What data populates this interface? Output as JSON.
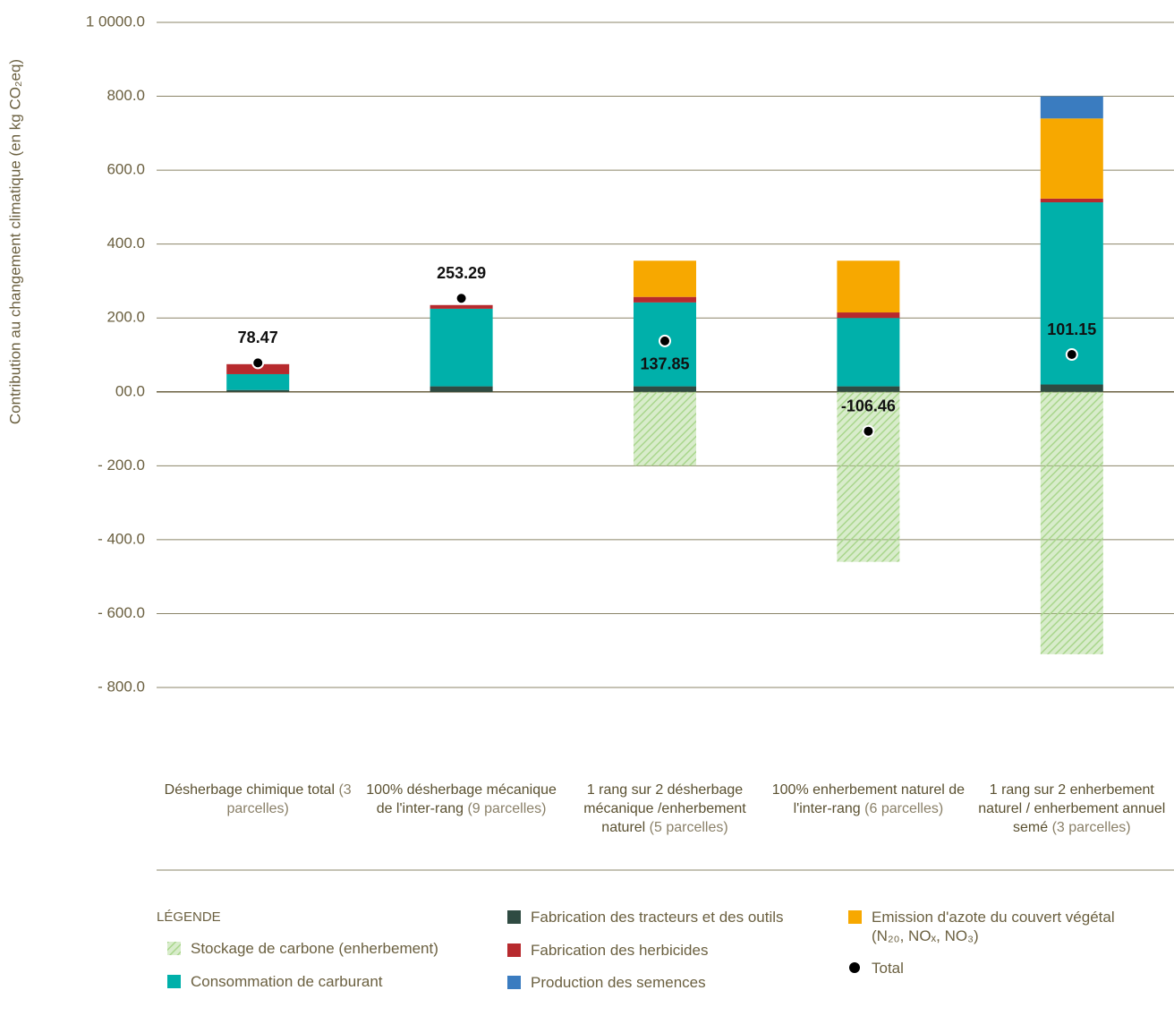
{
  "chart_data": {
    "type": "stacked_bar",
    "y_label": "Contribution au changement climatique (en kg CO₂eq)",
    "categories": [
      "Désherbage chimique total",
      "100% désherbage mécanique de l'inter-rang",
      "1 rang sur 2 désherbage mécanique /enherbement naturel",
      "100% enherbement naturel de l'inter-rang",
      "1 rang sur 2 enherbement naturel / enherbement annuel semé"
    ],
    "category_notes": [
      "(3 parcelles)",
      "(9 parcelles)",
      "(5 parcelles)",
      "(6 parcelles)",
      "(3 parcelles)"
    ],
    "ylim": [
      -800,
      1000
    ],
    "yticks": [
      {
        "value": 1000,
        "label": "1 0000.0"
      },
      {
        "value": 800,
        "label": "800.0"
      },
      {
        "value": 600,
        "label": "600.0"
      },
      {
        "value": 400,
        "label": "400.0"
      },
      {
        "value": 200,
        "label": "200.0"
      },
      {
        "value": 0,
        "label": "00.0"
      },
      {
        "value": -200,
        "label": "- 200.0"
      },
      {
        "value": -400,
        "label": "- 400.0"
      },
      {
        "value": -600,
        "label": "- 600.0"
      },
      {
        "value": -800,
        "label": "- 800.0"
      }
    ],
    "grid": true,
    "legend_title": "LÉGENDE",
    "series": [
      {
        "name": "Stockage de carbone (enherbement)",
        "color": "#a9d68c",
        "hatch": true,
        "values": [
          0,
          0,
          -200,
          -460,
          -710
        ]
      },
      {
        "name": "Consommation de carburant",
        "color": "#00b0aa",
        "values": [
          43,
          210,
          227,
          185,
          493
        ]
      },
      {
        "name": "Fabrication des tracteurs et des outils",
        "color": "#2f4b42",
        "values": [
          5,
          15,
          15,
          15,
          20
        ]
      },
      {
        "name": "Fabrication des herbicides",
        "color": "#b72a2e",
        "values": [
          27,
          10,
          15,
          15,
          10
        ]
      },
      {
        "name": "Production des semences",
        "color": "#3a7cc0",
        "values": [
          0,
          0,
          0,
          0,
          60
        ]
      },
      {
        "name": "Emission d'azote du couvert végétal (N₂₀, NOₓ, NO₃)",
        "color": "#f7a800",
        "values": [
          0,
          0,
          98,
          140,
          217
        ]
      }
    ],
    "totals": {
      "name": "Total",
      "color": "#000000",
      "values": [
        78.47,
        253.29,
        137.85,
        -106.46,
        101.15
      ]
    }
  }
}
